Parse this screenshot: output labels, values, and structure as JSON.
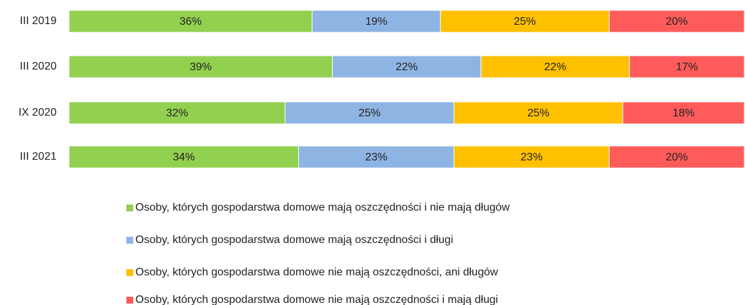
{
  "chart_data": {
    "type": "stacked_bar_horizontal",
    "categories": [
      "III 2019",
      "III 2020",
      "IX 2020",
      "III 2021"
    ],
    "series": [
      {
        "name": "Osoby, których gospodarstwa domowe mają oszczędności i nie mają długów",
        "color": "#92d050",
        "values": [
          36,
          39,
          32,
          34
        ],
        "value_labels": [
          "36%",
          "39%",
          "32%",
          "34%"
        ]
      },
      {
        "name": "Osoby, których gospodarstwa domowe mają oszczędności i długi",
        "color": "#8eb4e3",
        "values": [
          19,
          22,
          25,
          23
        ],
        "value_labels": [
          "19%",
          "22%",
          "25%",
          "23%"
        ]
      },
      {
        "name": "Osoby, których gospodarstwa domowe nie mają oszczędności, ani długów",
        "color": "#ffc000",
        "values": [
          25,
          22,
          25,
          23
        ],
        "value_labels": [
          "25%",
          "22%",
          "25%",
          "23%"
        ]
      },
      {
        "name": "Osoby, których gospodarstwa domowe nie mają oszczędności i mają długi",
        "color": "#ff5b5b",
        "values": [
          20,
          17,
          18,
          20
        ],
        "value_labels": [
          "20%",
          "17%",
          "18%",
          "20%"
        ]
      }
    ],
    "legend": "bottom"
  }
}
